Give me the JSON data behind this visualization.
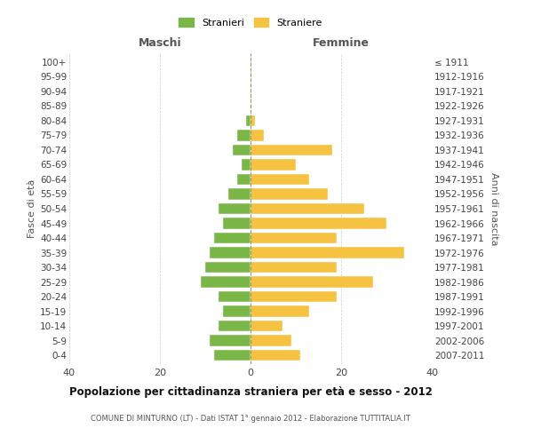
{
  "age_groups": [
    "0-4",
    "5-9",
    "10-14",
    "15-19",
    "20-24",
    "25-29",
    "30-34",
    "35-39",
    "40-44",
    "45-49",
    "50-54",
    "55-59",
    "60-64",
    "65-69",
    "70-74",
    "75-79",
    "80-84",
    "85-89",
    "90-94",
    "95-99",
    "100+"
  ],
  "birth_years": [
    "2007-2011",
    "2002-2006",
    "1997-2001",
    "1992-1996",
    "1987-1991",
    "1982-1986",
    "1977-1981",
    "1972-1976",
    "1967-1971",
    "1962-1966",
    "1957-1961",
    "1952-1956",
    "1947-1951",
    "1942-1946",
    "1937-1941",
    "1932-1936",
    "1927-1931",
    "1922-1926",
    "1917-1921",
    "1912-1916",
    "≤ 1911"
  ],
  "maschi_vals": [
    8,
    9,
    7,
    6,
    7,
    11,
    10,
    9,
    8,
    6,
    7,
    5,
    3,
    2,
    4,
    3,
    1,
    0,
    0,
    0,
    0
  ],
  "femmine_vals": [
    11,
    9,
    7,
    13,
    19,
    27,
    19,
    34,
    19,
    30,
    25,
    17,
    13,
    10,
    18,
    3,
    1,
    0,
    0,
    0,
    0
  ],
  "color_maschi": "#7ab648",
  "color_femmine": "#f5c242",
  "title": "Popolazione per cittadinanza straniera per età e sesso - 2012",
  "subtitle": "COMUNE DI MINTURNO (LT) - Dati ISTAT 1° gennaio 2012 - Elaborazione TUTTITALIA.IT",
  "ylabel_left": "Fasce di età",
  "ylabel_right": "Anni di nascita",
  "xlabel_left": "Maschi",
  "xlabel_right": "Femmine",
  "xlim": 40,
  "legend_stranieri": "Stranieri",
  "legend_straniere": "Straniere",
  "background_color": "#ffffff",
  "grid_color": "#cccccc",
  "dashed_line_color": "#999966"
}
